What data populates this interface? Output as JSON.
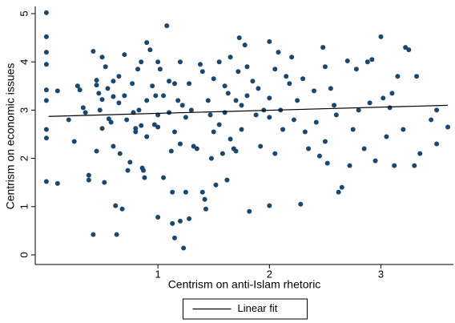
{
  "chart_data": {
    "type": "scatter",
    "xlabel": "Centrism on anti-Islam rhetoric",
    "ylabel": "Centrism on economic issues",
    "xlim": [
      -0.1,
      3.65
    ],
    "xticks": [
      1,
      2,
      3
    ],
    "ylim": [
      -0.2,
      5.15
    ],
    "yticks": [
      0,
      1,
      2,
      3,
      4,
      5
    ],
    "legend": "bottom",
    "series": [
      {
        "color": "#1a476f",
        "x": [
          0,
          0,
          0,
          0,
          0,
          0,
          0,
          0,
          0,
          0.1,
          0.1,
          0.2,
          0.25,
          0.28,
          0.3,
          0.33,
          0.35,
          0.38,
          0.38,
          0.42,
          0.42,
          0.45,
          0.45,
          0.47,
          0.48,
          0.5,
          0.5,
          0.5,
          0.52,
          0.45,
          0.53,
          0.55,
          0.56,
          0.58,
          0.6,
          0.6,
          0.6,
          0.62,
          0.63,
          0.65,
          0.65,
          0.66,
          0.68,
          0.7,
          0.7,
          0.72,
          0.73,
          0.75,
          0.77,
          0.78,
          0.8,
          0.8,
          0.82,
          0.83,
          0.85,
          0.85,
          0.86,
          0.87,
          0.88,
          0.9,
          0.9,
          0.9,
          0.93,
          0.95,
          0.97,
          0.98,
          1.0,
          1.0,
          1.0,
          1.0,
          1.02,
          1.05,
          1.05,
          1.08,
          1.1,
          1.1,
          1.12,
          1.13,
          1.13,
          1.15,
          1.15,
          1.15,
          1.18,
          1.2,
          1.2,
          1.2,
          1.22,
          1.23,
          1.25,
          1.25,
          1.28,
          1.28,
          1.3,
          1.32,
          1.35,
          1.38,
          1.4,
          1.4,
          1.42,
          1.43,
          1.45,
          1.47,
          1.48,
          1.5,
          1.5,
          1.52,
          1.55,
          1.55,
          1.58,
          1.6,
          1.6,
          1.62,
          1.63,
          1.65,
          1.65,
          1.68,
          1.7,
          1.7,
          1.72,
          1.73,
          1.75,
          1.75,
          1.78,
          1.8,
          1.8,
          1.82,
          1.85,
          1.88,
          1.9,
          1.92,
          1.95,
          2.0,
          2.0,
          2.0,
          2.0,
          2.05,
          2.05,
          2.08,
          2.1,
          2.12,
          2.15,
          2.18,
          2.2,
          2.22,
          2.25,
          2.28,
          2.3,
          2.32,
          2.35,
          2.4,
          2.42,
          2.45,
          2.48,
          2.5,
          2.5,
          2.52,
          2.55,
          2.58,
          2.6,
          2.62,
          2.65,
          2.7,
          2.72,
          2.75,
          2.78,
          2.8,
          2.85,
          2.88,
          2.9,
          2.92,
          2.95,
          3.0,
          3.02,
          3.05,
          3.08,
          3.1,
          3.12,
          3.15,
          3.2,
          3.22,
          3.25,
          3.3,
          3.32,
          3.35,
          3.45,
          3.5,
          3.5,
          3.6
        ],
        "values": [
          5.02,
          4.52,
          4.2,
          3.95,
          3.42,
          3.2,
          2.6,
          2.42,
          1.52,
          3.4,
          1.48,
          2.8,
          2.35,
          3.5,
          3.42,
          3.05,
          2.95,
          1.65,
          1.55,
          4.22,
          0.42,
          3.62,
          3.52,
          3.35,
          3.0,
          4.1,
          3.22,
          2.62,
          1.5,
          2.15,
          3.9,
          3.45,
          2.82,
          2.75,
          3.6,
          3.28,
          2.25,
          1.02,
          0.42,
          3.7,
          3.15,
          2.1,
          0.95,
          4.15,
          3.3,
          2.8,
          1.75,
          1.92,
          3.55,
          2.95,
          2.62,
          2.55,
          3.85,
          3.0,
          4.0,
          2.68,
          1.8,
          1.75,
          1.6,
          4.4,
          3.2,
          2.45,
          4.25,
          3.5,
          2.7,
          3.3,
          4.0,
          2.9,
          2.65,
          0.78,
          3.85,
          3.3,
          1.6,
          4.75,
          3.6,
          2.95,
          2.15,
          1.3,
          0.65,
          3.55,
          2.55,
          0.35,
          3.2,
          4.0,
          2.3,
          0.7,
          3.1,
          0.14,
          2.85,
          1.3,
          3.55,
          0.75,
          3.0,
          2.25,
          2.2,
          3.95,
          3.8,
          1.3,
          1.15,
          0.95,
          3.2,
          2.9,
          2.0,
          3.65,
          2.55,
          1.45,
          4.0,
          2.7,
          2.1,
          3.5,
          2.95,
          1.55,
          3.35,
          4.1,
          2.4,
          2.2,
          3.2,
          2.15,
          3.8,
          4.5,
          3.1,
          2.6,
          4.35,
          3.9,
          3.3,
          0.9,
          3.6,
          2.9,
          3.45,
          2.25,
          3.0,
          4.42,
          3.25,
          2.85,
          1.02,
          3.85,
          2.1,
          4.2,
          3.0,
          2.6,
          3.7,
          3.55,
          4.1,
          2.8,
          3.2,
          1.05,
          3.65,
          2.55,
          2.2,
          3.4,
          2.75,
          2.05,
          4.3,
          3.9,
          2.35,
          1.9,
          3.45,
          3.1,
          2.9,
          1.3,
          1.4,
          4.02,
          1.85,
          2.6,
          3.85,
          3.0,
          2.2,
          4.0,
          3.15,
          4.05,
          1.95,
          4.52,
          3.25,
          2.45,
          3.05,
          3.35,
          1.85,
          3.7,
          2.6,
          4.3,
          4.25,
          1.85,
          3.7,
          2.1,
          2.8,
          3.0,
          2.3,
          2.65
        ]
      },
      {
        "name": "Linear fit",
        "type": "line",
        "color": "#000000",
        "x": [
          0.02,
          3.6
        ],
        "values": [
          2.87,
          3.1
        ]
      }
    ]
  }
}
